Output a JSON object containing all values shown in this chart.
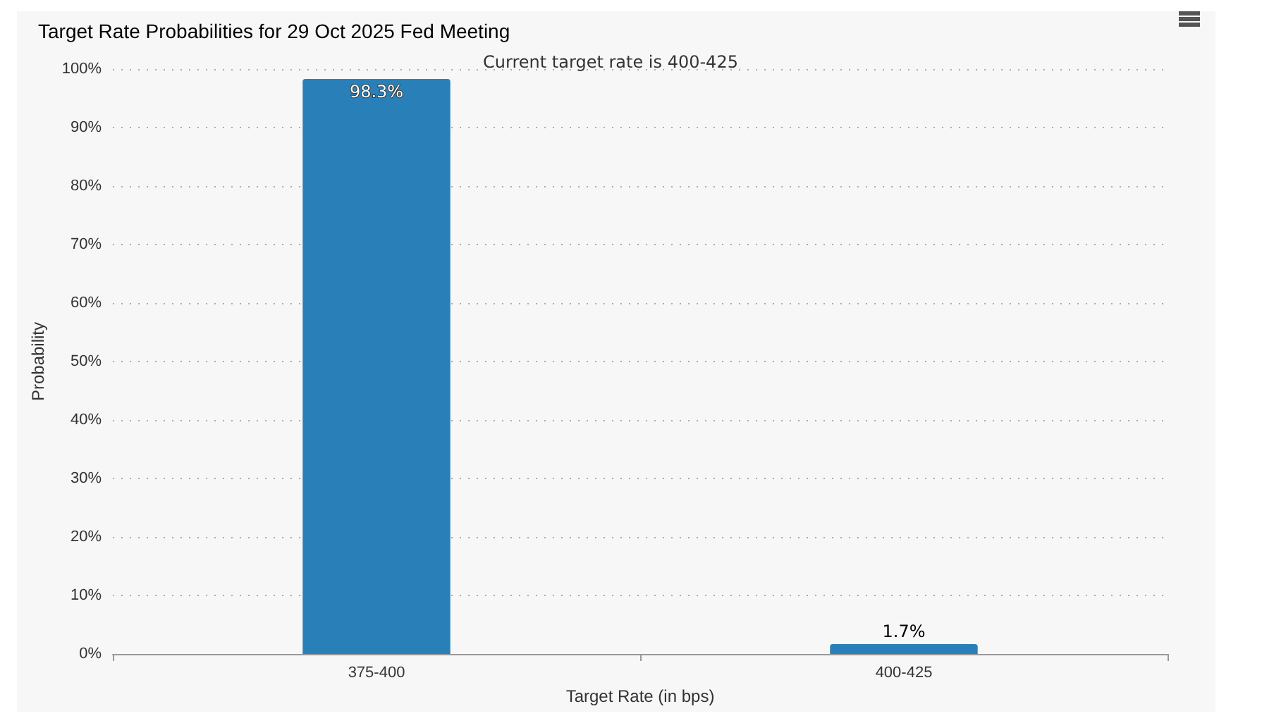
{
  "chart_data": {
    "type": "bar",
    "title": "Target Rate Probabilities for 29 Oct 2025 Fed Meeting",
    "subtitle": "Current target rate is 400-425",
    "xlabel": "Target Rate (in bps)",
    "ylabel": "Probability",
    "categories": [
      "375-400",
      "400-425"
    ],
    "values": [
      98.3,
      1.7
    ],
    "value_labels": [
      "98.3%",
      "1.7%"
    ],
    "color": "#2980b9",
    "ylim": [
      0,
      100
    ],
    "yticks": [
      {
        "value": 0,
        "label": "0%"
      },
      {
        "value": 10,
        "label": "10%"
      },
      {
        "value": 20,
        "label": "20%"
      },
      {
        "value": 30,
        "label": "30%"
      },
      {
        "value": 40,
        "label": "40%"
      },
      {
        "value": 50,
        "label": "50%"
      },
      {
        "value": 60,
        "label": "60%"
      },
      {
        "value": 70,
        "label": "70%"
      },
      {
        "value": 80,
        "label": "80%"
      },
      {
        "value": 90,
        "label": "90%"
      },
      {
        "value": 100,
        "label": "100%"
      }
    ],
    "grid": "y"
  }
}
